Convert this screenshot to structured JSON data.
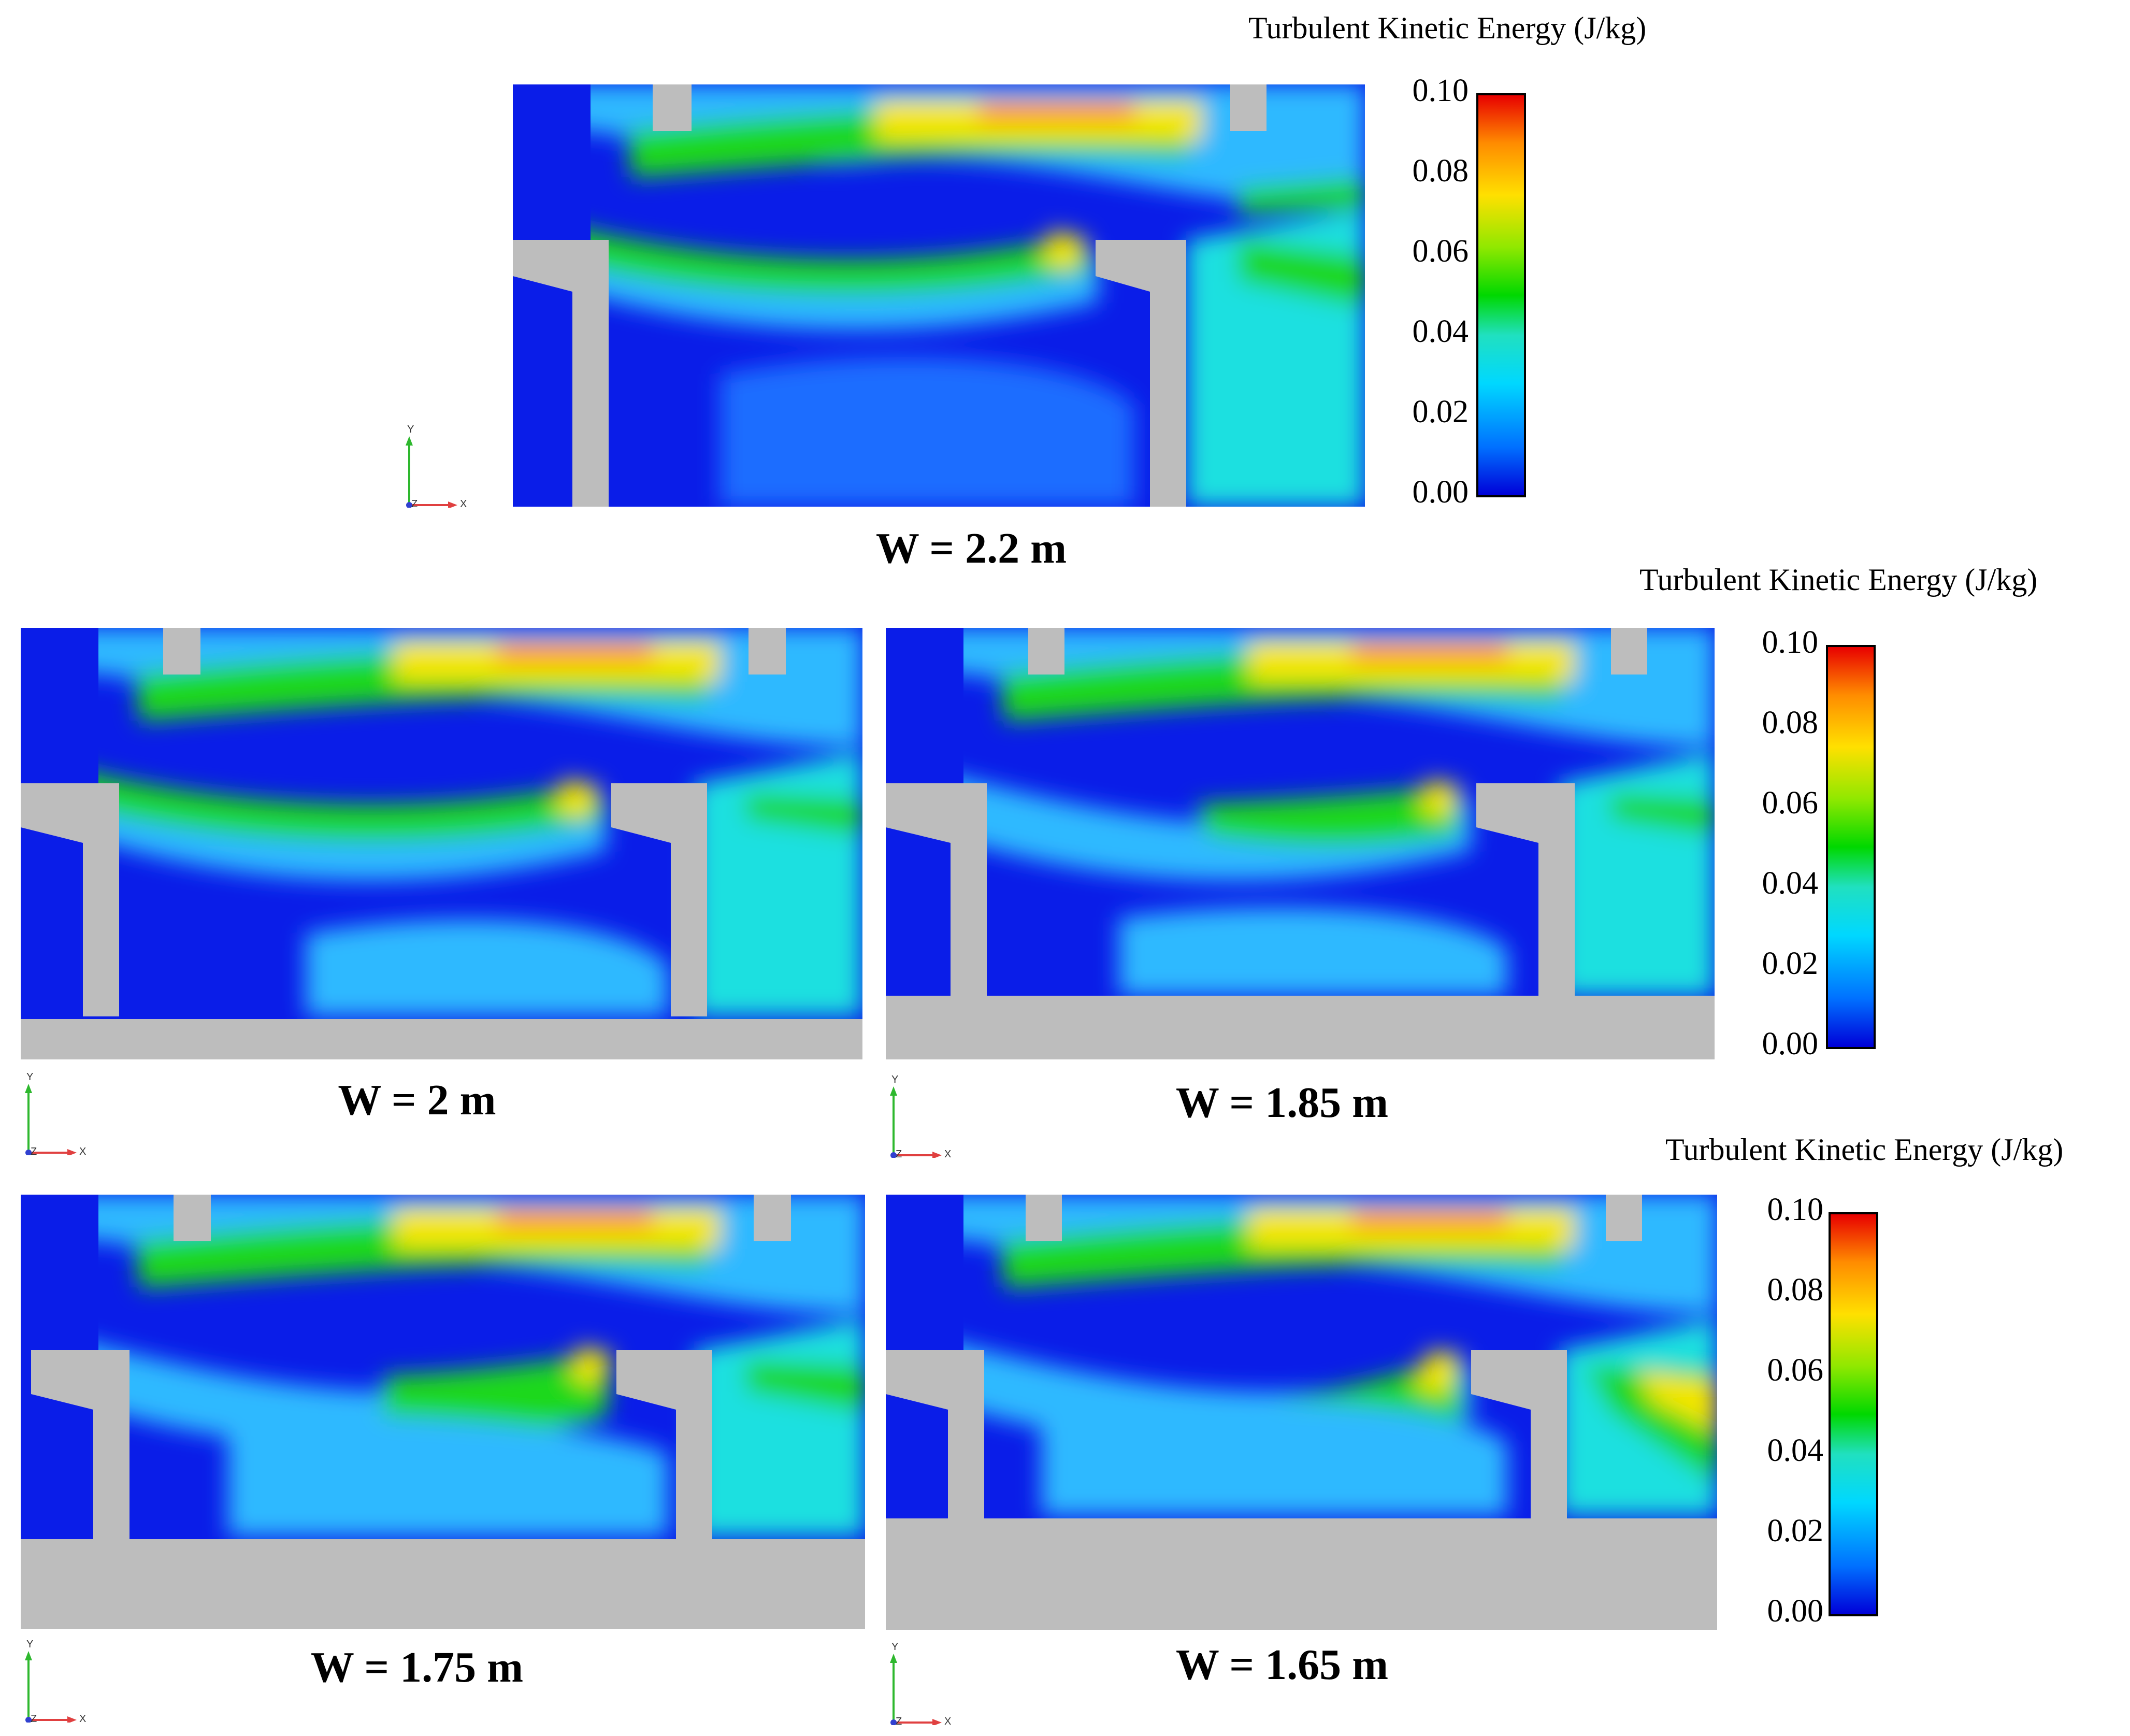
{
  "colorbar": {
    "title": "Turbulent Kinetic Energy (J/kg)",
    "ticks": [
      "0.10",
      "0.08",
      "0.06",
      "0.04",
      "0.02",
      "0.00"
    ],
    "range": [
      0.0,
      0.1
    ],
    "colormap": [
      "#0000d8",
      "#0070ff",
      "#00d8ff",
      "#20e0c0",
      "#00d800",
      "#90e800",
      "#ffe000",
      "#ff8c00",
      "#e80000"
    ]
  },
  "panels": [
    {
      "caption": "W = 2.2 m"
    },
    {
      "caption": "W = 2 m"
    },
    {
      "caption": "W = 1.85 m"
    },
    {
      "caption": "W = 1.75 m"
    },
    {
      "caption": "W = 1.65 m"
    }
  ],
  "axis_triad": {
    "y_label": "Y",
    "x_label": "X",
    "z_label": "Z"
  },
  "colors": {
    "solid": "#bdbdbd",
    "deep_blue": "#0a1de8",
    "blue": "#1f6dff",
    "light_blue": "#2fb9ff",
    "cyan": "#1fe0e0",
    "green": "#1ed81e",
    "yellow": "#f5e600",
    "orange": "#ff8a00",
    "red": "#e00000"
  }
}
